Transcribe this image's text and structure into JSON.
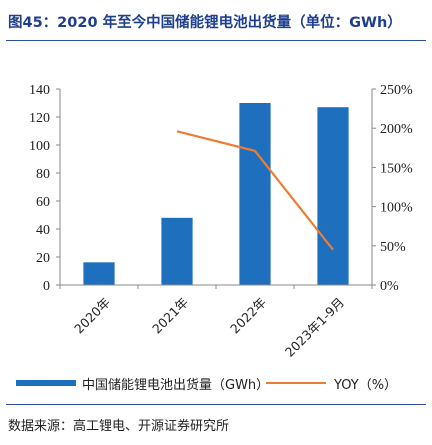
{
  "header": {
    "title": "图45：2020 年至今中国储能锂电池出货量（单位：GWh）"
  },
  "footer": {
    "source": "数据来源：高工锂电、开源证券研究所"
  },
  "chart_data": {
    "type": "bar",
    "categories": [
      "2020年",
      "2021年",
      "2022年",
      "2023年1-9月"
    ],
    "series": [
      {
        "name": "中国储能锂电池出货量（GWh）",
        "type": "bar",
        "axis": "left",
        "values": [
          16.2,
          48,
          130,
          127
        ],
        "color": "#1f6fbf"
      },
      {
        "name": "YOY（%）",
        "type": "line",
        "axis": "right",
        "values": [
          null,
          196,
          171,
          45
        ],
        "color": "#ed7d31"
      }
    ],
    "y_left": {
      "min": 0,
      "max": 140,
      "ticks": [
        0,
        20,
        40,
        60,
        80,
        100,
        120,
        140
      ]
    },
    "y_right": {
      "min": 0,
      "max": 250,
      "ticks": [
        "0%",
        "50%",
        "100%",
        "150%",
        "200%",
        "250%"
      ]
    },
    "legend_position": "bottom",
    "grid": false
  }
}
